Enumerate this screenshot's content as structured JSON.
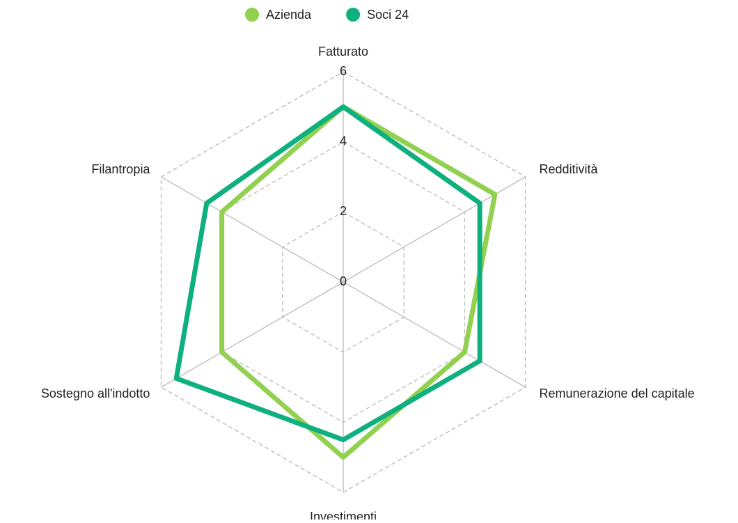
{
  "chart_data": {
    "type": "radar",
    "categories": [
      "Fatturato",
      "Redditività",
      "Remunerazione del capitale",
      "Investimenti",
      "Sostegno all'indotto",
      "Filantropia"
    ],
    "series": [
      {
        "name": "Azienda",
        "color": "#92d050",
        "values": [
          5,
          5,
          4,
          5,
          4,
          4
        ]
      },
      {
        "name": "Soci 24",
        "color": "#0fb07f",
        "values": [
          5,
          4.5,
          4.5,
          4.5,
          5.5,
          4.5
        ]
      }
    ],
    "ylim": [
      0,
      6
    ],
    "yticks": [
      0,
      2,
      4,
      6
    ],
    "grid": true,
    "legend": "top"
  }
}
